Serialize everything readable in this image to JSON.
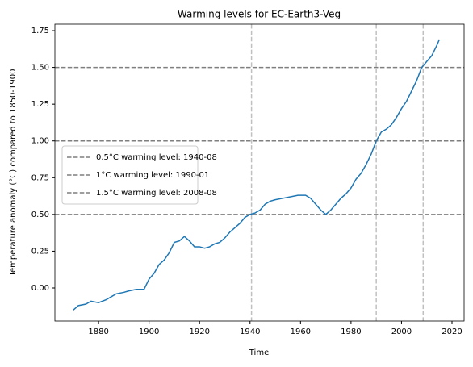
{
  "chart_data": {
    "type": "line",
    "title": "Warming levels for EC-Earth3-Veg",
    "xlabel": "Time",
    "ylabel": "Temperature anomaly (°C) compared to 1850-1900",
    "x": [
      1870,
      1872,
      1875,
      1877,
      1880,
      1883,
      1885,
      1887,
      1890,
      1892,
      1895,
      1898,
      1900,
      1902,
      1904,
      1906,
      1908,
      1910,
      1912,
      1914,
      1916,
      1918,
      1920,
      1922,
      1924,
      1926,
      1928,
      1930,
      1932,
      1934,
      1936,
      1938,
      1940,
      1942,
      1944,
      1946,
      1948,
      1950,
      1953,
      1956,
      1959,
      1962,
      1964,
      1966,
      1968,
      1970,
      1972,
      1974,
      1976,
      1978,
      1980,
      1982,
      1984,
      1986,
      1988,
      1990,
      1992,
      1994,
      1996,
      1998,
      2000,
      2002,
      2004,
      2006,
      2008,
      2010,
      2012,
      2014,
      2015
    ],
    "series": [
      {
        "color": "#1f77b4",
        "values": [
          -0.15,
          -0.12,
          -0.11,
          -0.09,
          -0.1,
          -0.08,
          -0.06,
          -0.04,
          -0.03,
          -0.02,
          -0.01,
          -0.01,
          0.06,
          0.1,
          0.16,
          0.19,
          0.24,
          0.31,
          0.32,
          0.35,
          0.32,
          0.28,
          0.28,
          0.27,
          0.28,
          0.3,
          0.31,
          0.34,
          0.38,
          0.41,
          0.44,
          0.48,
          0.5,
          0.51,
          0.53,
          0.57,
          0.59,
          0.6,
          0.61,
          0.62,
          0.63,
          0.63,
          0.61,
          0.57,
          0.53,
          0.5,
          0.53,
          0.57,
          0.61,
          0.64,
          0.68,
          0.74,
          0.78,
          0.84,
          0.91,
          1.0,
          1.06,
          1.08,
          1.11,
          1.16,
          1.22,
          1.27,
          1.34,
          1.41,
          1.5,
          1.54,
          1.58,
          1.65,
          1.69
        ]
      }
    ],
    "levels": [
      {
        "name": "0.5°C warming level: 1940-08",
        "value": 0.5,
        "x": "1940-08"
      },
      {
        "name": "1°C warming level: 1990-01",
        "value": 1.0,
        "x": "1990-01"
      },
      {
        "name": "1.5°C warming level: 2008-08",
        "value": 1.5,
        "x": "2008-08"
      }
    ],
    "level_color": "#7f7f7f",
    "date_color": "#c0c0c0",
    "xlim": [
      1862.7,
      2024.8
    ],
    "xticks": [
      1880,
      1900,
      1920,
      1940,
      1960,
      1980,
      2000,
      2020
    ],
    "ylim": [
      -0.225,
      1.794
    ],
    "yticks": [
      {
        "value": 0,
        "label": "0.00"
      },
      {
        "value": 0.25,
        "label": "0.25"
      },
      {
        "value": 0.5,
        "label": "0.50"
      },
      {
        "value": 0.75,
        "label": "0.75"
      },
      {
        "value": 1,
        "label": "1.00"
      },
      {
        "value": 1.25,
        "label": "1.25"
      },
      {
        "value": 1.5,
        "label": "1.50"
      },
      {
        "value": 1.75,
        "label": "1.75"
      }
    ],
    "legend": "center left"
  }
}
